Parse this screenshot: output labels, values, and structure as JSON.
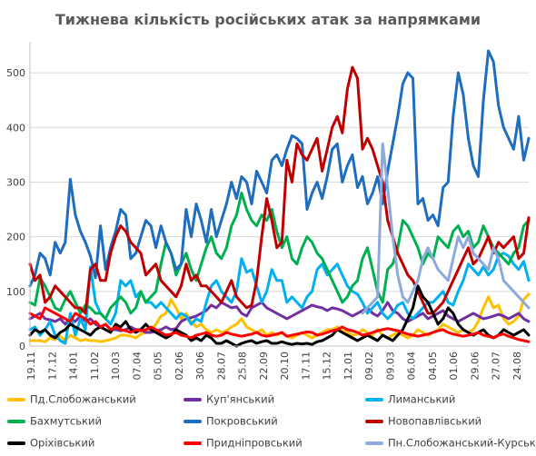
{
  "chart_data": {
    "type": "line",
    "title": "Тижнева кількість російських атак за напрямками",
    "xlabel": "",
    "ylabel": "",
    "ylim": [
      0,
      550
    ],
    "y_ticks": [
      0,
      100,
      200,
      300,
      400,
      500
    ],
    "grid": "horizontal",
    "legend_position": "bottom",
    "x_tick_labels": [
      "19.11",
      "17.12",
      "14.01",
      "11.02",
      "10.03",
      "07.04",
      "05.05",
      "02.06",
      "30.06",
      "28.07",
      "25.08",
      "22.09",
      "20.10",
      "17.11",
      "15.12",
      "12.01",
      "09.02",
      "09.03",
      "06.04",
      "04.05",
      "01.06",
      "29.06",
      "27.07",
      "24.08"
    ],
    "series": [
      {
        "name": "Пд.Слобожанський",
        "color": "#ffc000",
        "values": [
          10,
          10,
          10,
          8,
          15,
          12,
          18,
          10,
          20,
          15,
          10,
          12,
          10,
          10,
          8,
          10,
          12,
          15,
          20,
          20,
          18,
          15,
          22,
          25,
          28,
          40,
          55,
          60,
          85,
          70,
          50,
          60,
          45,
          35,
          40,
          30,
          25,
          30,
          25,
          28,
          35,
          40,
          50,
          35,
          30,
          25,
          30,
          20,
          25,
          20,
          25,
          18,
          15,
          20,
          25,
          20,
          15,
          20,
          25,
          30,
          30,
          35,
          28,
          25,
          20,
          22,
          30,
          25,
          20,
          30,
          20,
          15,
          20,
          25,
          20,
          15,
          20,
          30,
          25,
          20,
          25,
          30,
          40,
          35,
          30,
          25,
          30,
          25,
          30,
          45,
          70,
          90,
          70,
          75,
          50,
          40,
          45,
          55,
          85,
          95
        ]
      },
      {
        "name": "Куп'янський",
        "color": "#7030a0",
        "values": [
          50,
          55,
          60,
          50,
          48,
          45,
          50,
          40,
          50,
          45,
          55,
          45,
          50,
          40,
          35,
          40,
          30,
          30,
          28,
          30,
          35,
          30,
          30,
          25,
          25,
          28,
          30,
          35,
          30,
          32,
          45,
          50,
          52,
          55,
          60,
          65,
          75,
          70,
          80,
          75,
          70,
          72,
          60,
          55,
          70,
          75,
          80,
          70,
          65,
          60,
          55,
          50,
          55,
          60,
          65,
          70,
          75,
          72,
          70,
          65,
          70,
          68,
          65,
          60,
          55,
          60,
          65,
          70,
          60,
          55,
          65,
          80,
          65,
          60,
          50,
          45,
          50,
          55,
          60,
          50,
          55,
          60,
          65,
          55,
          50,
          45,
          50,
          55,
          60,
          55,
          50,
          52,
          55,
          58,
          55,
          50,
          55,
          60,
          50,
          45
        ]
      },
      {
        "name": "Лиманський",
        "color": "#00b0f0",
        "values": [
          30,
          35,
          20,
          30,
          45,
          20,
          10,
          5,
          60,
          20,
          50,
          30,
          145,
          80,
          60,
          50,
          40,
          60,
          120,
          110,
          120,
          90,
          100,
          80,
          80,
          70,
          80,
          70,
          60,
          50,
          60,
          55,
          40,
          50,
          45,
          80,
          110,
          120,
          100,
          90,
          80,
          100,
          160,
          135,
          140,
          110,
          80,
          100,
          140,
          120,
          120,
          80,
          90,
          80,
          70,
          90,
          100,
          140,
          150,
          130,
          140,
          150,
          130,
          110,
          100,
          95,
          80,
          60,
          70,
          80,
          60,
          50,
          60,
          75,
          80,
          60,
          50,
          60,
          70,
          80,
          80,
          90,
          100,
          80,
          75,
          100,
          120,
          150,
          140,
          130,
          145,
          130,
          140,
          165,
          170,
          165,
          150,
          140,
          155,
          120
        ]
      },
      {
        "name": "Бахмутський",
        "color": "#00b050",
        "values": [
          80,
          75,
          125,
          110,
          90,
          70,
          65,
          85,
          100,
          80,
          60,
          75,
          70,
          60,
          60,
          50,
          70,
          80,
          90,
          80,
          60,
          70,
          100,
          80,
          90,
          100,
          150,
          190,
          170,
          130,
          150,
          170,
          140,
          120,
          150,
          180,
          200,
          170,
          160,
          180,
          220,
          240,
          280,
          250,
          230,
          220,
          240,
          230,
          250,
          210,
          180,
          200,
          160,
          150,
          180,
          200,
          190,
          170,
          160,
          140,
          120,
          100,
          80,
          90,
          110,
          120,
          160,
          180,
          140,
          100,
          80,
          140,
          150,
          180,
          230,
          220,
          200,
          180,
          150,
          170,
          160,
          200,
          190,
          180,
          210,
          220,
          200,
          210,
          180,
          190,
          220,
          200,
          180,
          170,
          160,
          150,
          170,
          180,
          220,
          230
        ]
      },
      {
        "name": "Покровський",
        "color": "#1f6dbf",
        "values": [
          110,
          130,
          170,
          160,
          130,
          190,
          170,
          190,
          305,
          240,
          210,
          190,
          165,
          125,
          220,
          140,
          180,
          210,
          250,
          240,
          160,
          170,
          200,
          230,
          220,
          180,
          220,
          190,
          170,
          140,
          150,
          250,
          200,
          260,
          230,
          190,
          250,
          200,
          230,
          260,
          300,
          270,
          310,
          300,
          260,
          320,
          300,
          280,
          340,
          350,
          330,
          360,
          385,
          380,
          370,
          250,
          280,
          300,
          270,
          310,
          360,
          370,
          300,
          330,
          350,
          290,
          310,
          260,
          280,
          310,
          260,
          320,
          370,
          420,
          480,
          500,
          490,
          260,
          270,
          230,
          240,
          220,
          290,
          300,
          420,
          500,
          460,
          380,
          330,
          310,
          450,
          540,
          520,
          440,
          400,
          380,
          360,
          420,
          340,
          380
        ]
      },
      {
        "name": "Новопавлівський",
        "color": "#c00000",
        "values": [
          150,
          120,
          130,
          80,
          90,
          110,
          100,
          90,
          80,
          70,
          70,
          60,
          140,
          150,
          120,
          120,
          170,
          200,
          220,
          210,
          190,
          180,
          170,
          130,
          140,
          150,
          120,
          110,
          100,
          90,
          110,
          150,
          120,
          130,
          110,
          110,
          100,
          90,
          80,
          100,
          120,
          90,
          80,
          70,
          75,
          120,
          200,
          270,
          230,
          180,
          190,
          340,
          300,
          370,
          350,
          340,
          360,
          380,
          320,
          360,
          400,
          420,
          390,
          470,
          510,
          490,
          360,
          380,
          360,
          330,
          300,
          230,
          200,
          170,
          150,
          130,
          120,
          100,
          80,
          60,
          60,
          70,
          80,
          100,
          120,
          140,
          160,
          180,
          150,
          160,
          180,
          200,
          170,
          190,
          180,
          190,
          200,
          160,
          170,
          235
        ]
      },
      {
        "name": "Оріхівський",
        "color": "#000000",
        "values": [
          20,
          30,
          25,
          30,
          20,
          15,
          25,
          30,
          40,
          35,
          30,
          25,
          20,
          30,
          35,
          30,
          25,
          40,
          35,
          45,
          30,
          25,
          30,
          40,
          30,
          25,
          20,
          15,
          20,
          30,
          25,
          20,
          10,
          15,
          10,
          20,
          15,
          5,
          5,
          10,
          5,
          0,
          5,
          8,
          10,
          5,
          8,
          10,
          5,
          5,
          8,
          5,
          3,
          5,
          4,
          5,
          3,
          8,
          10,
          15,
          20,
          30,
          25,
          20,
          15,
          10,
          15,
          20,
          15,
          10,
          20,
          15,
          10,
          20,
          30,
          50,
          70,
          110,
          90,
          80,
          60,
          40,
          50,
          70,
          60,
          40,
          30,
          25,
          20,
          25,
          30,
          20,
          15,
          20,
          30,
          25,
          20,
          25,
          30,
          20
        ]
      },
      {
        "name": "Придніпровський",
        "color": "#ff0000",
        "values": [
          60,
          55,
          50,
          70,
          65,
          60,
          55,
          50,
          45,
          60,
          55,
          50,
          40,
          45,
          35,
          40,
          30,
          35,
          30,
          28,
          25,
          30,
          28,
          30,
          35,
          30,
          25,
          20,
          22,
          25,
          20,
          18,
          15,
          20,
          22,
          25,
          20,
          18,
          20,
          25,
          22,
          20,
          18,
          20,
          22,
          25,
          20,
          18,
          20,
          22,
          25,
          18,
          20,
          22,
          24,
          26,
          25,
          20,
          22,
          25,
          28,
          30,
          35,
          30,
          28,
          25,
          20,
          22,
          25,
          28,
          30,
          32,
          30,
          28,
          25,
          22,
          20,
          18,
          20,
          22,
          25,
          28,
          30,
          25,
          22,
          20,
          18,
          20,
          22,
          25,
          20,
          18,
          15,
          20,
          22,
          18,
          15,
          12,
          10,
          8
        ]
      },
      {
        "name": "Пн.Слобожанський-Курський",
        "color": "#8ea9db",
        "values": [
          null,
          null,
          null,
          null,
          null,
          null,
          null,
          null,
          null,
          null,
          null,
          null,
          null,
          null,
          null,
          null,
          null,
          null,
          null,
          null,
          null,
          null,
          null,
          null,
          null,
          null,
          null,
          null,
          null,
          null,
          null,
          null,
          null,
          null,
          null,
          null,
          null,
          null,
          null,
          null,
          null,
          null,
          null,
          null,
          null,
          null,
          null,
          null,
          null,
          null,
          null,
          null,
          null,
          null,
          null,
          null,
          null,
          null,
          null,
          null,
          null,
          null,
          null,
          null,
          null,
          null,
          60,
          70,
          80,
          90,
          370,
          290,
          200,
          130,
          90,
          80,
          100,
          120,
          160,
          180,
          160,
          140,
          130,
          120,
          160,
          200,
          180,
          200,
          170,
          160,
          150,
          140,
          180,
          160,
          120,
          110,
          100,
          90,
          80,
          70
        ]
      }
    ]
  }
}
